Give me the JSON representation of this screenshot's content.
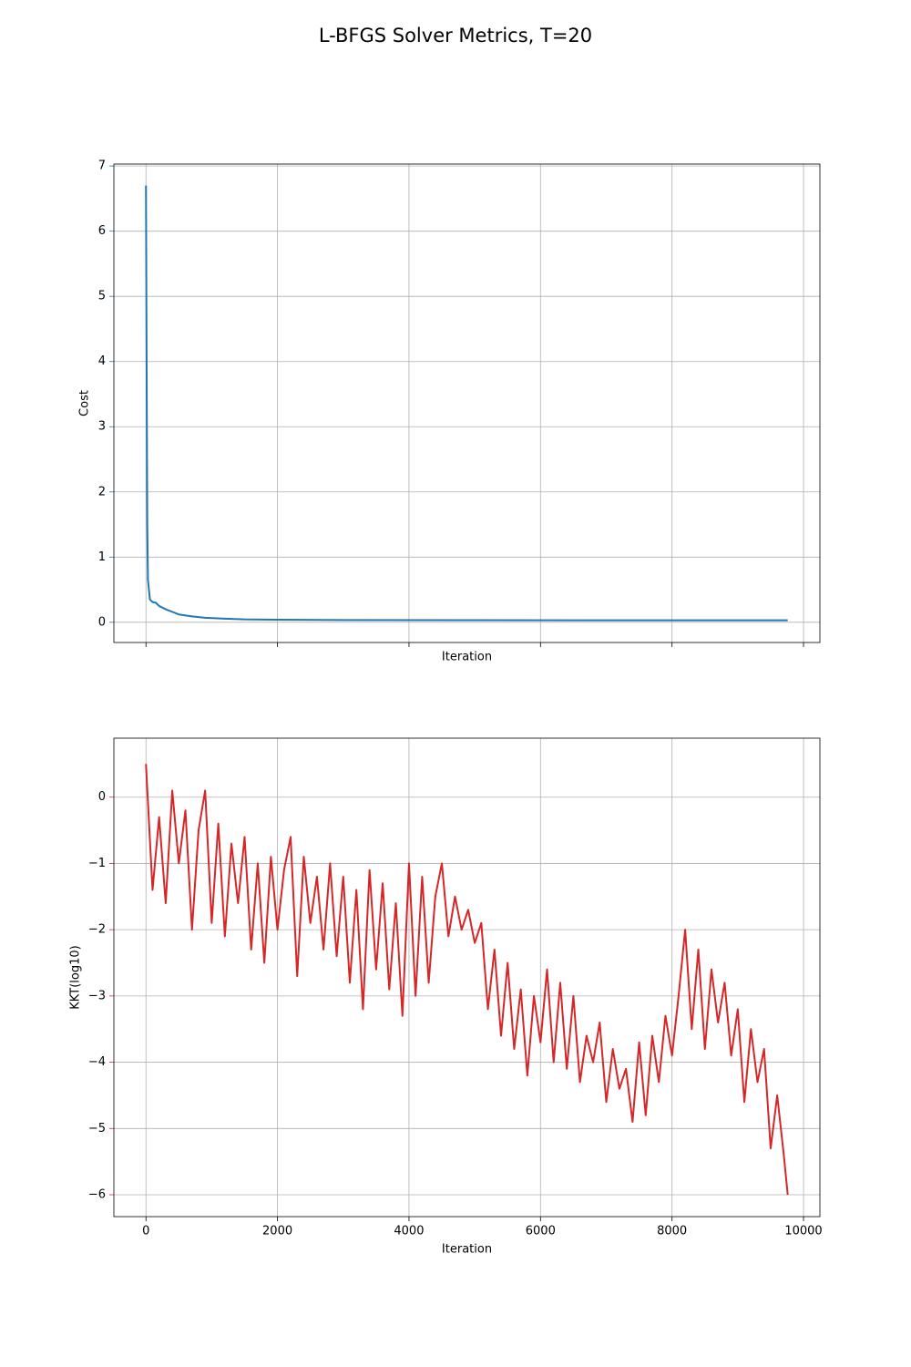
{
  "title": "L-BFGS Solver Metrics, T=20",
  "chart_data": [
    {
      "type": "line",
      "color": "#1f77b4",
      "ylabel": "Cost",
      "xlabel": "Iteration",
      "x": [
        0,
        10,
        20,
        30,
        60,
        100,
        150,
        200,
        300,
        400,
        500,
        700,
        900,
        1200,
        1500,
        2000,
        3000,
        5000,
        7000,
        9760
      ],
      "values": [
        6.7,
        4.0,
        1.5,
        0.65,
        0.35,
        0.31,
        0.3,
        0.25,
        0.2,
        0.16,
        0.12,
        0.09,
        0.07,
        0.055,
        0.045,
        0.04,
        0.035,
        0.032,
        0.031,
        0.03
      ],
      "xlim": [
        -488,
        10249
      ],
      "ylim": [
        -0.31,
        7.03
      ],
      "xticks": [
        0,
        2000,
        4000,
        6000,
        8000,
        10000
      ],
      "xtick_labels": false,
      "yticks": [
        0,
        1,
        2,
        3,
        4,
        5,
        6,
        7
      ],
      "grid": true
    },
    {
      "type": "line",
      "color": "#d62728",
      "ylabel": "KKT(log10)",
      "xlabel": "Iteration",
      "x": [
        0,
        100,
        200,
        300,
        400,
        500,
        600,
        700,
        800,
        900,
        1000,
        1100,
        1200,
        1300,
        1400,
        1500,
        1600,
        1700,
        1800,
        1900,
        2000,
        2100,
        2200,
        2300,
        2400,
        2500,
        2600,
        2700,
        2800,
        2900,
        3000,
        3100,
        3200,
        3300,
        3400,
        3500,
        3600,
        3700,
        3800,
        3900,
        4000,
        4100,
        4200,
        4300,
        4400,
        4500,
        4600,
        4700,
        4800,
        4900,
        5000,
        5100,
        5200,
        5300,
        5400,
        5500,
        5600,
        5700,
        5800,
        5900,
        6000,
        6100,
        6200,
        6300,
        6400,
        6500,
        6600,
        6700,
        6800,
        6900,
        7000,
        7100,
        7200,
        7300,
        7400,
        7500,
        7600,
        7700,
        7800,
        7900,
        8000,
        8100,
        8200,
        8300,
        8400,
        8500,
        8600,
        8700,
        8800,
        8900,
        9000,
        9100,
        9200,
        9300,
        9400,
        9500,
        9600,
        9700,
        9760
      ],
      "values": [
        0.5,
        -1.4,
        -0.3,
        -1.6,
        0.1,
        -1.0,
        -0.2,
        -2.0,
        -0.5,
        0.1,
        -1.9,
        -0.4,
        -2.1,
        -0.7,
        -1.6,
        -0.6,
        -2.3,
        -1.0,
        -2.5,
        -0.9,
        -2.0,
        -1.1,
        -0.6,
        -2.7,
        -0.9,
        -1.9,
        -1.2,
        -2.3,
        -1.0,
        -2.4,
        -1.2,
        -2.8,
        -1.4,
        -3.2,
        -1.1,
        -2.6,
        -1.3,
        -2.9,
        -1.6,
        -3.3,
        -1.0,
        -3.0,
        -1.2,
        -2.8,
        -1.5,
        -1.0,
        -2.1,
        -1.5,
        -2.0,
        -1.7,
        -2.2,
        -1.9,
        -3.2,
        -2.3,
        -3.6,
        -2.5,
        -3.8,
        -2.9,
        -4.2,
        -3.0,
        -3.7,
        -2.6,
        -4.0,
        -2.8,
        -4.1,
        -3.0,
        -4.3,
        -3.6,
        -4.0,
        -3.4,
        -4.6,
        -3.8,
        -4.4,
        -4.1,
        -4.9,
        -3.7,
        -4.8,
        -3.6,
        -4.3,
        -3.3,
        -3.9,
        -3.0,
        -2.0,
        -3.5,
        -2.3,
        -3.8,
        -2.6,
        -3.4,
        -2.8,
        -3.9,
        -3.2,
        -4.6,
        -3.5,
        -4.3,
        -3.8,
        -5.3,
        -4.5,
        -5.4,
        -6.0
      ],
      "xlim": [
        -488,
        10249
      ],
      "ylim": [
        -6.33,
        0.89
      ],
      "xticks": [
        0,
        2000,
        4000,
        6000,
        8000,
        10000
      ],
      "xtick_labels": true,
      "yticks": [
        {
          "value": -6,
          "label": "−6"
        },
        {
          "value": -5,
          "label": "−5"
        },
        {
          "value": -4,
          "label": "−4"
        },
        {
          "value": -3,
          "label": "−3"
        },
        {
          "value": -2,
          "label": "−2"
        },
        {
          "value": -1,
          "label": "−1"
        },
        0
      ],
      "grid": true
    }
  ]
}
